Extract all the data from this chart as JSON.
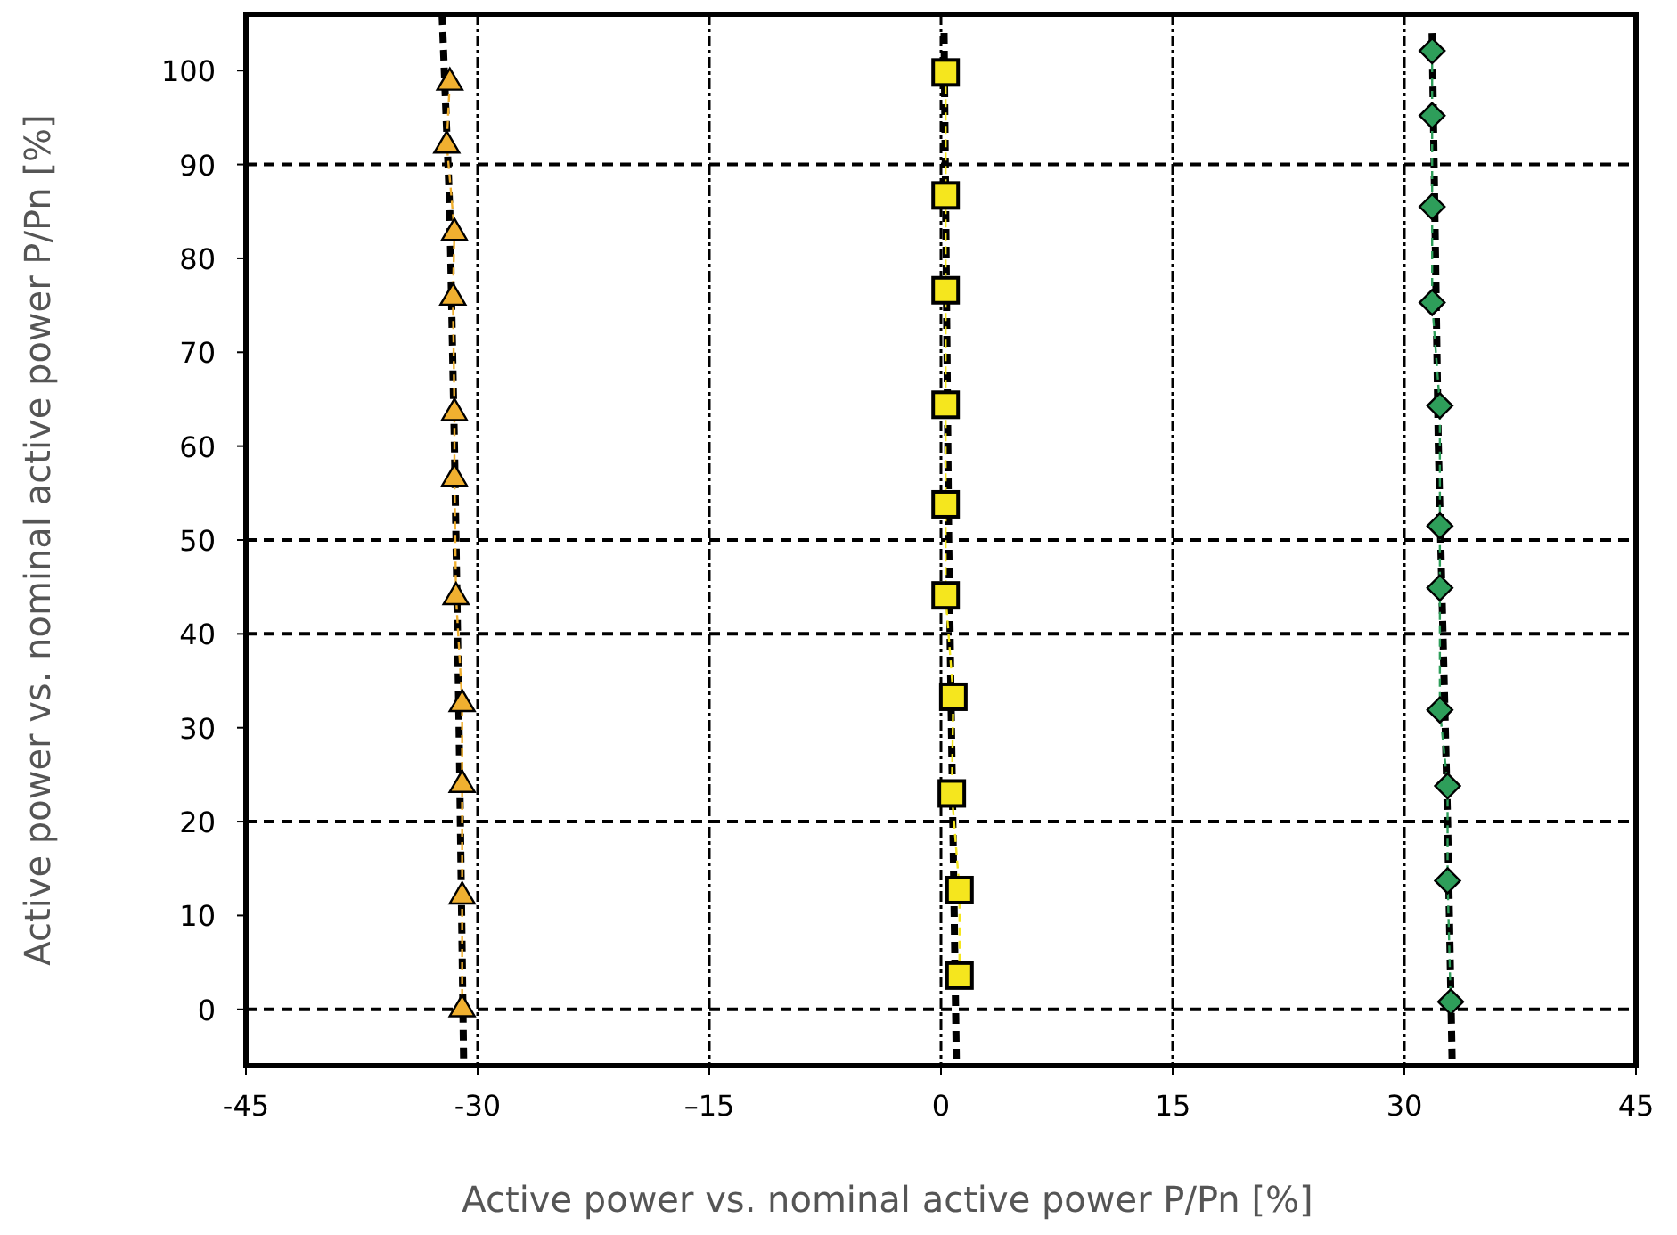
{
  "chart_data": {
    "type": "line",
    "xlabel": "Active power vs. nominal active power P/Pn [%]",
    "ylabel": "Active power vs. nominal active power P/Pn [%]",
    "xlim": [
      -45,
      45
    ],
    "xticks": [
      -45,
      -30,
      {
        "value": -15,
        "label": "–15"
      },
      0,
      15,
      30,
      45
    ],
    "ylim": [
      -6,
      106
    ],
    "yticks": [
      0,
      10,
      20,
      30,
      40,
      50,
      60,
      70,
      80,
      90,
      100
    ],
    "grid": "x",
    "ref_lines": [
      {
        "axis": "y",
        "value": 0,
        "line_style": "dashed"
      },
      {
        "axis": "y",
        "value": 20,
        "line_style": "dashed"
      },
      {
        "axis": "y",
        "value": 40,
        "line_style": "dashed"
      },
      {
        "axis": "y",
        "value": 50,
        "line_style": "dashed"
      },
      {
        "axis": "y",
        "value": 90,
        "line_style": "dashed"
      }
    ],
    "series": [
      {
        "type": "line",
        "color": "#000000",
        "marker": "none",
        "line_style": "dashed",
        "x": [
          -32.3,
          -31.8,
          -31.5,
          -31.2,
          -30.9
        ],
        "values": [
          106,
          85,
          60,
          30,
          -6
        ]
      },
      {
        "type": "line",
        "color": "#000000",
        "marker": "none",
        "line_style": "dashed",
        "x": [
          0.2,
          0.5,
          1
        ],
        "values": [
          104,
          50,
          -6
        ]
      },
      {
        "type": "line",
        "color": "#000000",
        "marker": "none",
        "line_style": "dashed",
        "x": [
          31.8,
          32.2,
          32.8,
          33.1
        ],
        "values": [
          104,
          60,
          20,
          -6
        ]
      },
      {
        "color": "#f0b030",
        "marker": "triangle",
        "line_style": "dashed",
        "x": [
          -31.8,
          -32.0,
          -31.5,
          -31.6,
          -31.5,
          -31.5,
          -31.4,
          -31.0,
          -31.0,
          -31.0,
          -31.0
        ],
        "values": [
          98.9,
          92.2,
          82.9,
          76,
          63.7,
          56.7,
          44.1,
          32.7,
          24.1,
          12.2,
          0.2
        ]
      },
      {
        "color": "#f5e61e",
        "marker": "square",
        "line_style": "dashed",
        "x": [
          0.3,
          0.3,
          0.3,
          0.3,
          0.3,
          0.3,
          0.8,
          0.7,
          1.2,
          1.2
        ],
        "values": [
          99.8,
          86.7,
          76.6,
          64.4,
          53.8,
          44.1,
          33.3,
          23,
          12.7,
          3.6
        ]
      },
      {
        "color": "#2e9e5a",
        "marker": "diamond",
        "line_style": "dashed",
        "x": [
          31.8,
          31.8,
          31.8,
          31.8,
          32.3,
          32.3,
          32.3,
          32.3,
          32.8,
          32.8,
          33
        ],
        "values": [
          102.1,
          95.2,
          85.5,
          75.3,
          64.3,
          51.5,
          44.9,
          31.9,
          23.8,
          13.7,
          0.8
        ]
      }
    ]
  }
}
